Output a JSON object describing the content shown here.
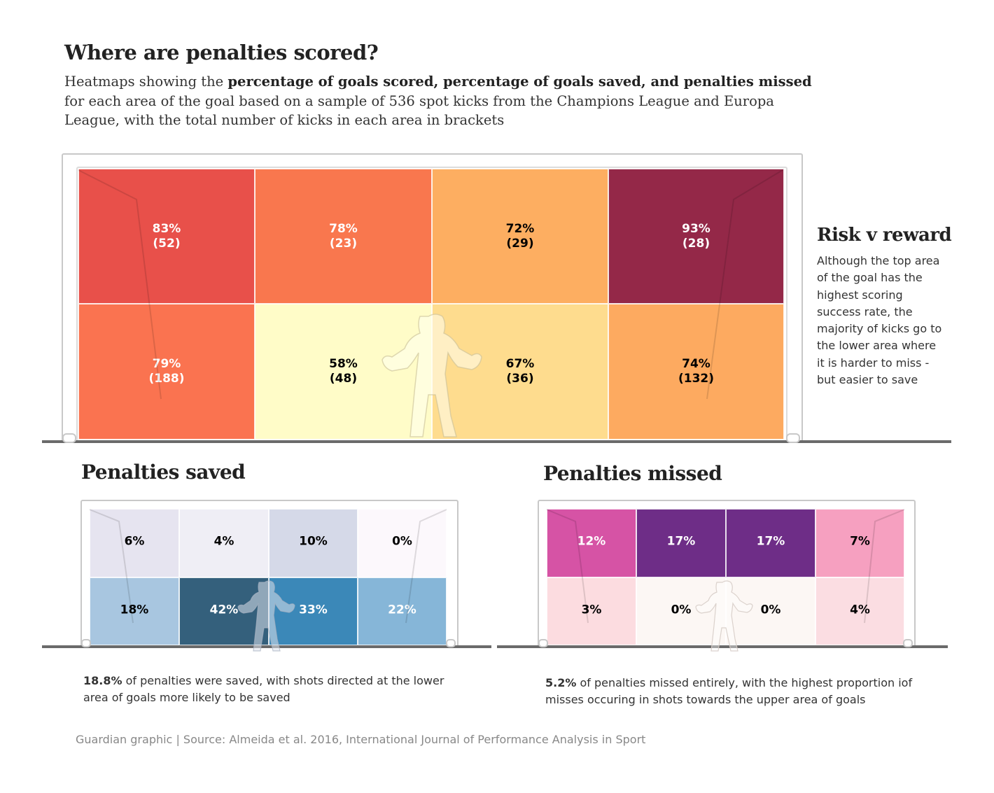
{
  "title": "Where are penalties scored?",
  "subtitle": {
    "part1": "Heatmaps showing the ",
    "bold": "percentage of goals scored, percentage of goals saved, and penalties missed",
    "part2": " for each area of the goal based on a sample of 536 spot kicks from the Champions League and Europa League, with the total number of kicks in each area in brackets"
  },
  "side_note": {
    "title": "Risk v reward",
    "text": "Although the top area of the goal has the highest scoring success rate, the majority of kicks go to the lower area where it is harder to miss - but easier to save"
  },
  "saved_note": {
    "highlight": "18.8%",
    "text": " of penalties were saved, with shots directed at the lower area of goals more likely to be saved"
  },
  "missed_note": {
    "highlight": "5.2%",
    "text": " of penalties missed entirely, with the highest proportion iof misses occuring in shots towards the upper area of goals"
  },
  "source": "Guardian graphic | Source: Almeida et al. 2016, International Journal of Performance Analysis in Sport",
  "chart_data": [
    {
      "type": "heatmap",
      "id": "scored",
      "title": "Where are penalties scored?",
      "rows": [
        "top",
        "bottom"
      ],
      "columns": 4,
      "value_unit": "% goals scored",
      "cells": [
        [
          {
            "value": 83,
            "label": "83%",
            "count": 52,
            "count_label": "(52)",
            "color": "#e8504a",
            "text_color": "#ffffff"
          },
          {
            "value": 78,
            "label": "78%",
            "count": 23,
            "count_label": "(23)",
            "color": "#f9774e",
            "text_color": "#ffffff"
          },
          {
            "value": 72,
            "label": "72%",
            "count": 29,
            "count_label": "(29)",
            "color": "#fdae61",
            "text_color": "#000000"
          },
          {
            "value": 93,
            "label": "93%",
            "count": 28,
            "count_label": "(28)",
            "color": "#942848",
            "text_color": "#ffffff"
          }
        ],
        [
          {
            "value": 79,
            "label": "79%",
            "count": 188,
            "count_label": "(188)",
            "color": "#fa7350",
            "text_color": "#ffffff"
          },
          {
            "value": 58,
            "label": "58%",
            "count": 48,
            "count_label": "(48)",
            "color": "#fffcc8",
            "text_color": "#000000"
          },
          {
            "value": 67,
            "label": "67%",
            "count": 36,
            "count_label": "(36)",
            "color": "#fedc8e",
            "text_color": "#000000"
          },
          {
            "value": 74,
            "label": "74%",
            "count": 132,
            "count_label": "(132)",
            "color": "#fdaa60",
            "text_color": "#000000"
          }
        ]
      ]
    },
    {
      "type": "heatmap",
      "id": "saved",
      "title": "Penalties saved",
      "rows": [
        "top",
        "bottom"
      ],
      "columns": 4,
      "value_unit": "% saved",
      "cells": [
        [
          {
            "value": 6,
            "label": "6%",
            "color": "#e6e4f0",
            "text_color": "#000000"
          },
          {
            "value": 4,
            "label": "4%",
            "color": "#efeef5",
            "text_color": "#000000"
          },
          {
            "value": 10,
            "label": "10%",
            "color": "#d5d9e8",
            "text_color": "#000000"
          },
          {
            "value": 0,
            "label": "0%",
            "color": "#fcf8fc",
            "text_color": "#000000"
          }
        ],
        [
          {
            "value": 18,
            "label": "18%",
            "color": "#a8c6e0",
            "text_color": "#000000"
          },
          {
            "value": 42,
            "label": "42%",
            "color": "#34607c",
            "text_color": "#ffffff"
          },
          {
            "value": 33,
            "label": "33%",
            "color": "#3b88b8",
            "text_color": "#ffffff"
          },
          {
            "value": 22,
            "label": "22%",
            "color": "#86b6d8",
            "text_color": "#ffffff"
          }
        ]
      ]
    },
    {
      "type": "heatmap",
      "id": "missed",
      "title": "Penalties missed",
      "rows": [
        "top",
        "bottom"
      ],
      "columns": 4,
      "value_unit": "% missed",
      "cells": [
        [
          {
            "value": 12,
            "label": "12%",
            "color": "#d653a5",
            "text_color": "#ffffff"
          },
          {
            "value": 17,
            "label": "17%",
            "color": "#6e2d87",
            "text_color": "#ffffff"
          },
          {
            "value": 17,
            "label": "17%",
            "color": "#6e2d87",
            "text_color": "#ffffff"
          },
          {
            "value": 7,
            "label": "7%",
            "color": "#f6a0c0",
            "text_color": "#000000"
          }
        ],
        [
          {
            "value": 3,
            "label": "3%",
            "color": "#fcdce0",
            "text_color": "#000000"
          },
          {
            "value": 0,
            "label": "0%",
            "color": "#fcf7f4",
            "text_color": "#000000"
          },
          {
            "value": 0,
            "label": "0%",
            "color": "#fcf7f4",
            "text_color": "#000000"
          },
          {
            "value": 4,
            "label": "4%",
            "color": "#fbdde2",
            "text_color": "#000000"
          }
        ]
      ]
    }
  ]
}
